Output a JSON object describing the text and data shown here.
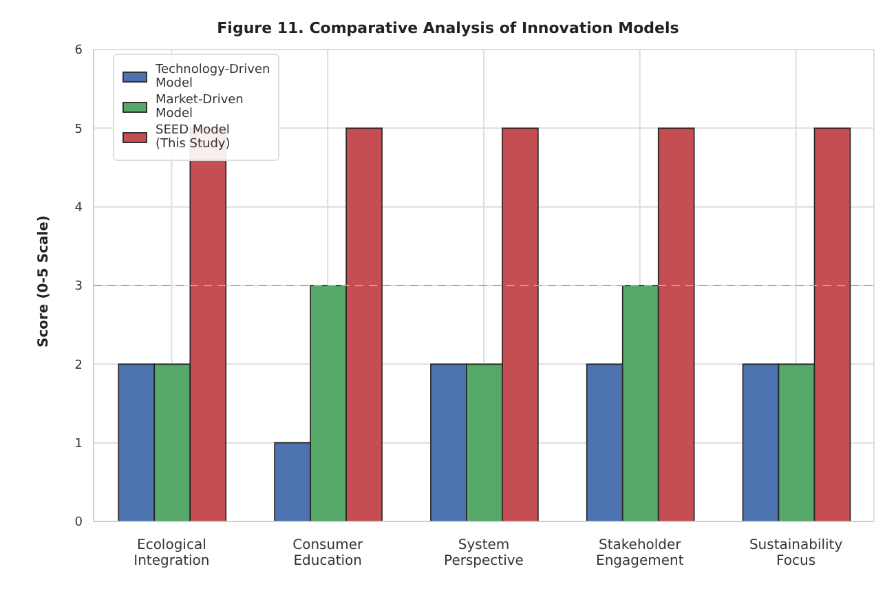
{
  "chart_data": {
    "type": "bar",
    "title": "Figure 11. Comparative Analysis of Innovation Models",
    "ylabel": "Score (0-5 Scale)",
    "categories": [
      "Ecological\nIntegration",
      "Consumer\nEducation",
      "System\nPerspective",
      "Stakeholder\nEngagement",
      "Sustainability\nFocus"
    ],
    "series": [
      {
        "name": "Technology-Driven\nModel",
        "color": "#4c72b0",
        "values": [
          2,
          1,
          2,
          2,
          2
        ]
      },
      {
        "name": "Market-Driven\nModel",
        "color": "#55a868",
        "values": [
          2,
          3,
          2,
          3,
          2
        ]
      },
      {
        "name": "SEED Model\n(This Study)",
        "color": "#c44e52",
        "values": [
          5,
          5,
          5,
          5,
          5
        ]
      }
    ],
    "ylim": [
      0,
      6
    ],
    "yticks": [
      0,
      1,
      2,
      3,
      4,
      5,
      6
    ],
    "grid": true,
    "legend": "top left",
    "ref_lines": [
      {
        "axis": "y",
        "value": 3,
        "color": "#aaaaaa",
        "line_style": "dashed"
      }
    ]
  }
}
